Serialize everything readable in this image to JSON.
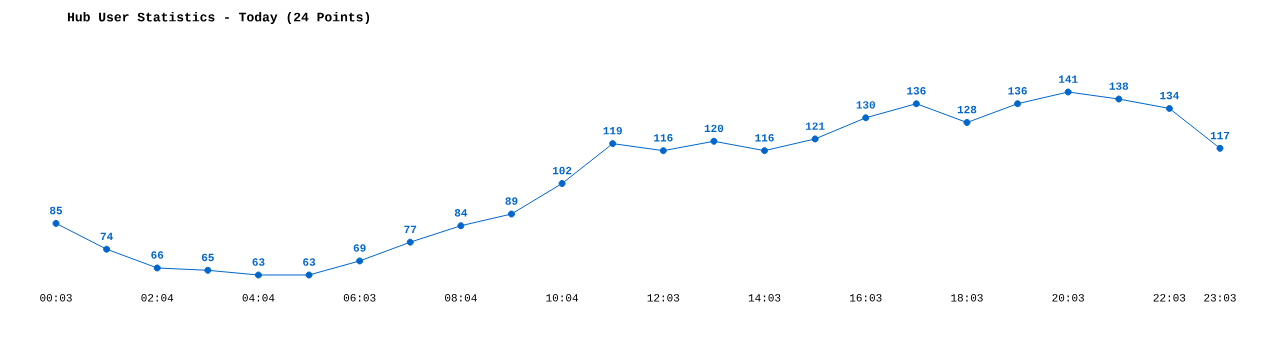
{
  "chart_data": {
    "type": "line",
    "title": "Hub User Statistics - Today (24 Points)",
    "categories": [
      "00:03",
      null,
      "02:04",
      null,
      "04:04",
      null,
      "06:03",
      null,
      "08:04",
      null,
      "10:04",
      null,
      "12:03",
      null,
      "14:03",
      null,
      "16:03",
      null,
      "18:03",
      null,
      "20:03",
      null,
      "22:03",
      "23:03"
    ],
    "values": [
      85,
      74,
      66,
      65,
      63,
      63,
      69,
      77,
      84,
      89,
      102,
      119,
      116,
      120,
      116,
      121,
      130,
      136,
      128,
      136,
      141,
      138,
      134,
      117
    ],
    "color": "#0066cc",
    "data_labels": true,
    "marker": "circle",
    "line_style": "solid"
  }
}
